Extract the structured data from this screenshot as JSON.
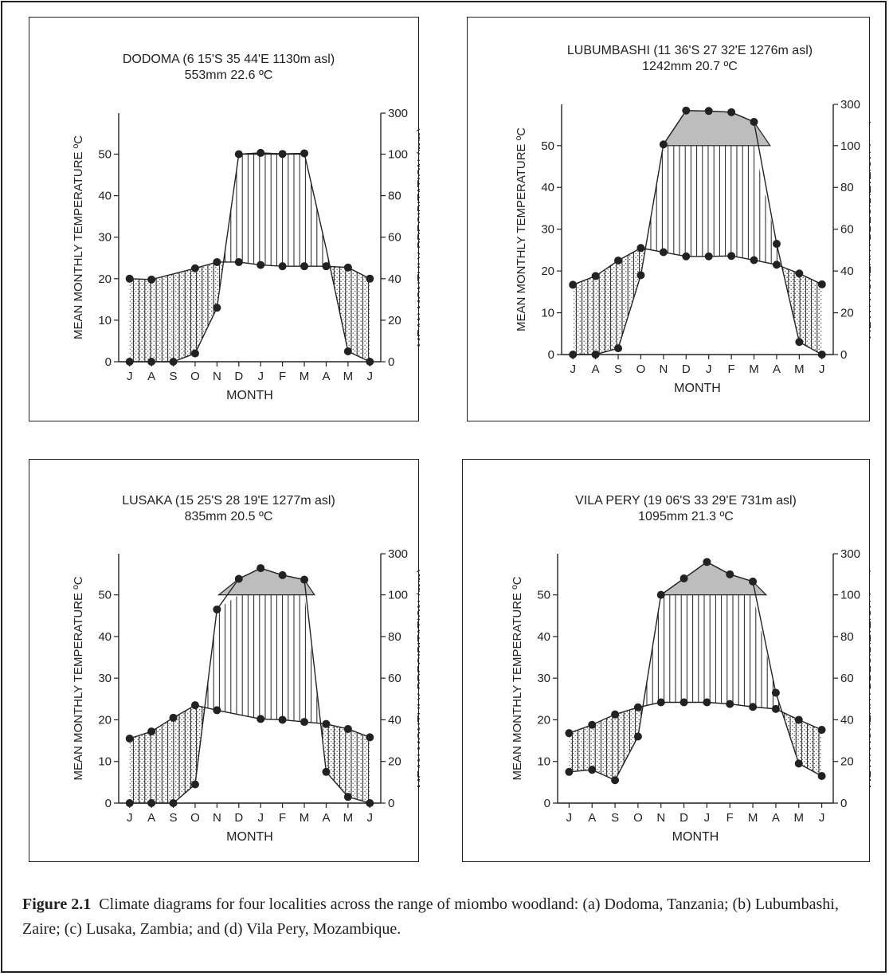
{
  "caption": {
    "label": "Figure 2.1",
    "text": "Climate diagrams for four localities across the range of miombo woodland: (a) Dodoma, Tanzania; (b) Lubumbashi, Zaire; (c) Lusaka, Zambia; and (d) Vila Pery, Mozambique."
  },
  "colors": {
    "stipple": "#555555",
    "humid_fill": "#ffffff",
    "excess_fill": "#bdbdbd",
    "line": "#222222"
  },
  "chart_data": [
    {
      "type": "line",
      "title": "DODOMA (6 15'S   35 44'E   1130m asl)",
      "subtitle": "553mm  22.6 ºC",
      "xlabel": "MONTH",
      "ylabel_left": "MEAN  MONTHLY  TEMPERATURE  ºC",
      "ylabel_right": "MEAN  MONTHLY  PRECIPITATION (mm)",
      "categories": [
        "J",
        "A",
        "S",
        "O",
        "N",
        "D",
        "J",
        "F",
        "M",
        "A",
        "M",
        "J"
      ],
      "left_ticks": [
        0,
        10,
        20,
        30,
        40,
        50
      ],
      "right_ticks": [
        0,
        20,
        40,
        60,
        80,
        100,
        300
      ],
      "temperature": [
        20,
        19.8,
        null,
        22.5,
        24,
        24,
        23.3,
        23,
        23,
        23,
        22.7,
        20
      ],
      "precipitation": [
        0,
        0,
        0,
        4,
        26,
        100,
        106,
        101,
        104,
        null,
        5,
        0
      ]
    },
    {
      "type": "line",
      "title": "LUBUMBASHI (11 36'S  27 32'E  1276m asl)",
      "subtitle": "1242mm 20.7 ºC",
      "xlabel": "MONTH",
      "ylabel_left": "MEAN  MONTHLY  TEMPERATURE  ºC",
      "ylabel_right": "MEAN  MONTHLY  PRECIPITATION (mm)",
      "categories": [
        "J",
        "A",
        "S",
        "O",
        "N",
        "D",
        "J",
        "F",
        "M",
        "A",
        "M",
        "J"
      ],
      "left_ticks": [
        0,
        10,
        20,
        30,
        40,
        50
      ],
      "right_ticks": [
        0,
        20,
        40,
        60,
        80,
        100,
        300
      ],
      "temperature": [
        16.7,
        18.8,
        22.5,
        25.5,
        24.5,
        23.5,
        23.5,
        23.6,
        22.6,
        21.5,
        19.4,
        16.8
      ],
      "precipitation": [
        0,
        0,
        3,
        38,
        106,
        270,
        268,
        262,
        215,
        53,
        6,
        0
      ]
    },
    {
      "type": "line",
      "title": "LUSAKA (15 25'S  28 19'E  1277m asl)",
      "subtitle": "835mm  20.5 ºC",
      "xlabel": "MONTH",
      "ylabel_left": "MEAN  MONTHLY  TEMPERATURE  ºC",
      "ylabel_right": "MEAN  MONTHLY  PRECIPITATION (mm)",
      "categories": [
        "J",
        "A",
        "S",
        "O",
        "N",
        "D",
        "J",
        "F",
        "M",
        "A",
        "M",
        "J"
      ],
      "left_ticks": [
        0,
        10,
        20,
        30,
        40,
        50
      ],
      "right_ticks": [
        0,
        20,
        40,
        60,
        80,
        100,
        300
      ],
      "temperature": [
        15.5,
        17.2,
        20.5,
        23.5,
        22.3,
        null,
        20.2,
        20,
        19.5,
        19,
        17.8,
        15.8
      ],
      "precipitation": [
        0,
        0,
        0,
        9,
        93,
        178,
        230,
        196,
        174,
        15,
        3,
        0
      ]
    },
    {
      "type": "line",
      "title": "VILA PERY (19 06'S  33 29'E  731m asl)",
      "subtitle": "1095mm 21.3 ºC",
      "xlabel": "MONTH",
      "ylabel_left": "MEAN  MONTHLY  TEMPERATURE  ºC",
      "ylabel_right": "MEAN  MONTHLY  PRECIPITATION (mm)",
      "categories": [
        "J",
        "A",
        "S",
        "O",
        "N",
        "D",
        "J",
        "F",
        "M",
        "A",
        "M",
        "J"
      ],
      "left_ticks": [
        0,
        10,
        20,
        30,
        40,
        50
      ],
      "right_ticks": [
        0,
        20,
        40,
        60,
        80,
        100,
        300
      ],
      "temperature": [
        16.8,
        18.8,
        21.3,
        23,
        24.2,
        24.2,
        24.2,
        23.8,
        23.1,
        22.6,
        20,
        17.6
      ],
      "precipitation": [
        15,
        16,
        11,
        32,
        100,
        180,
        260,
        200,
        165,
        53,
        19,
        13
      ]
    }
  ]
}
